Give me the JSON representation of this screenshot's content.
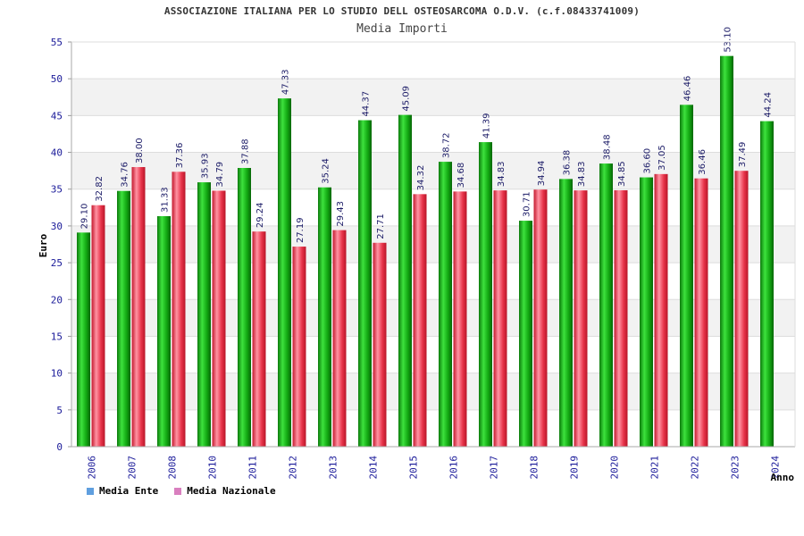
{
  "chart_data": {
    "type": "bar",
    "title": "ASSOCIAZIONE ITALIANA PER LO STUDIO DELL OSTEOSARCOMA O.D.V. (c.f.08433741009)",
    "subtitle": "Media Importi",
    "ylabel": "Euro",
    "xlabel": "Anno",
    "ylim": [
      0,
      55
    ],
    "yticks": [
      0,
      5,
      10,
      15,
      20,
      25,
      30,
      35,
      40,
      45,
      50,
      55
    ],
    "grid": true,
    "legend_position": "bottom-left",
    "categories": [
      "2006",
      "2007",
      "2008",
      "2010",
      "2011",
      "2012",
      "2013",
      "2014",
      "2015",
      "2016",
      "2017",
      "2018",
      "2019",
      "2020",
      "2021",
      "2022",
      "2023",
      "2024"
    ],
    "series": [
      {
        "name": "Media Ente",
        "legend_color": "#5f9fdf",
        "bar_color": "#1aa81a",
        "values": [
          29.1,
          34.76,
          31.33,
          35.93,
          37.88,
          47.33,
          35.24,
          44.37,
          45.09,
          38.72,
          41.39,
          30.71,
          36.38,
          38.48,
          36.6,
          46.46,
          53.1,
          44.24
        ]
      },
      {
        "name": "Media Nazionale",
        "legend_color": "#d97fbf",
        "bar_color": "#e8344a",
        "values": [
          32.82,
          38.0,
          37.36,
          34.79,
          29.24,
          27.19,
          29.43,
          27.71,
          34.32,
          34.68,
          34.83,
          34.94,
          34.83,
          34.85,
          37.05,
          36.46,
          37.49,
          null
        ]
      }
    ]
  }
}
